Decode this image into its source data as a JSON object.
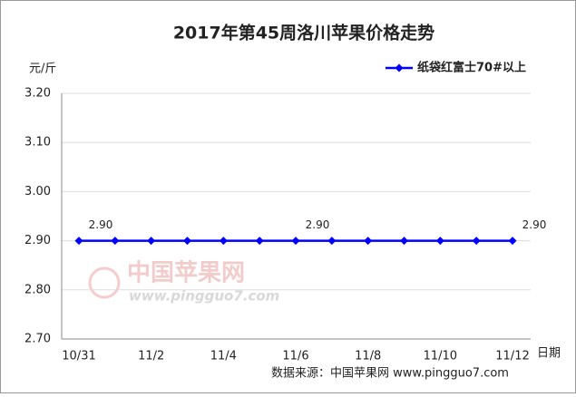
{
  "chart_data": {
    "type": "line",
    "title": "2017年第45周洛川苹果价格走势",
    "y_label": "元/斤",
    "x_label": "日期",
    "source": "数据来源：中国苹果网 www.pingguo7.com",
    "watermark": {
      "name": "中国苹果网",
      "url": "www.pingguo7.com"
    },
    "categories": [
      "10/31",
      null,
      "11/2",
      null,
      "11/4",
      null,
      "11/6",
      null,
      "11/8",
      null,
      "11/10",
      null,
      "11/12"
    ],
    "series": [
      {
        "name": "纸袋红富士70#以上",
        "color": "#0000ff",
        "values": [
          2.9,
          2.9,
          2.9,
          2.9,
          2.9,
          2.9,
          2.9,
          2.9,
          2.9,
          2.9,
          2.9,
          2.9,
          2.9
        ],
        "value_labels": [
          "2.90",
          null,
          null,
          null,
          null,
          null,
          "2.90",
          null,
          null,
          null,
          null,
          null,
          "2.90"
        ]
      }
    ],
    "ylim": [
      2.7,
      3.2
    ],
    "yticks": [
      {
        "value": 2.7,
        "label": "2.70"
      },
      {
        "value": 2.8,
        "label": "2.80"
      },
      {
        "value": 2.9,
        "label": "2.90"
      },
      {
        "value": 3.0,
        "label": "3.00"
      },
      {
        "value": 3.1,
        "label": "3.10"
      },
      {
        "value": 3.2,
        "label": "3.20"
      }
    ],
    "grid": true,
    "legend": "top-right"
  }
}
